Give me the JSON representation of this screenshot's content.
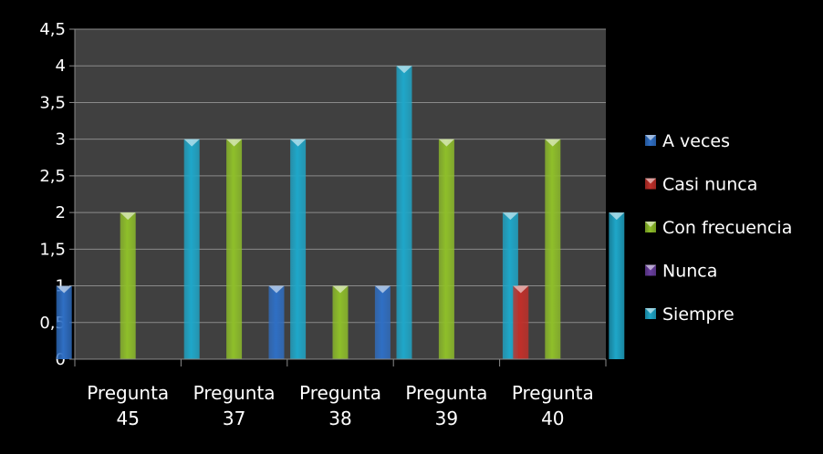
{
  "chart_data": {
    "type": "bar",
    "categories": [
      [
        "Pregunta",
        "45"
      ],
      [
        "Pregunta",
        "37"
      ],
      [
        "Pregunta",
        "38"
      ],
      [
        "Pregunta",
        "39"
      ],
      [
        "Pregunta",
        "40"
      ]
    ],
    "series": [
      {
        "name": "A veces",
        "color": "#2f6fc4",
        "values": [
          1,
          0,
          1,
          1,
          0
        ]
      },
      {
        "name": "Casi nunca",
        "color": "#c0302a",
        "values": [
          0,
          0,
          0,
          0,
          1
        ]
      },
      {
        "name": "Con frecuencia",
        "color": "#8fbf2a",
        "values": [
          2,
          3,
          1,
          3,
          3
        ]
      },
      {
        "name": "Nunca",
        "color": "#6a3fa0",
        "values": [
          0,
          0,
          0,
          0,
          0
        ]
      },
      {
        "name": "Siempre",
        "color": "#1fa7c9",
        "values": [
          3,
          3,
          4,
          2,
          2
        ]
      }
    ],
    "yticks": [
      "0",
      "0,5",
      "1",
      "1,5",
      "2",
      "2,5",
      "3",
      "3,5",
      "4",
      "4,5"
    ],
    "ylim": [
      0,
      4.5
    ],
    "grid": true,
    "legend_position": "right",
    "plot_background": "#404040",
    "page_background": "#000000"
  }
}
